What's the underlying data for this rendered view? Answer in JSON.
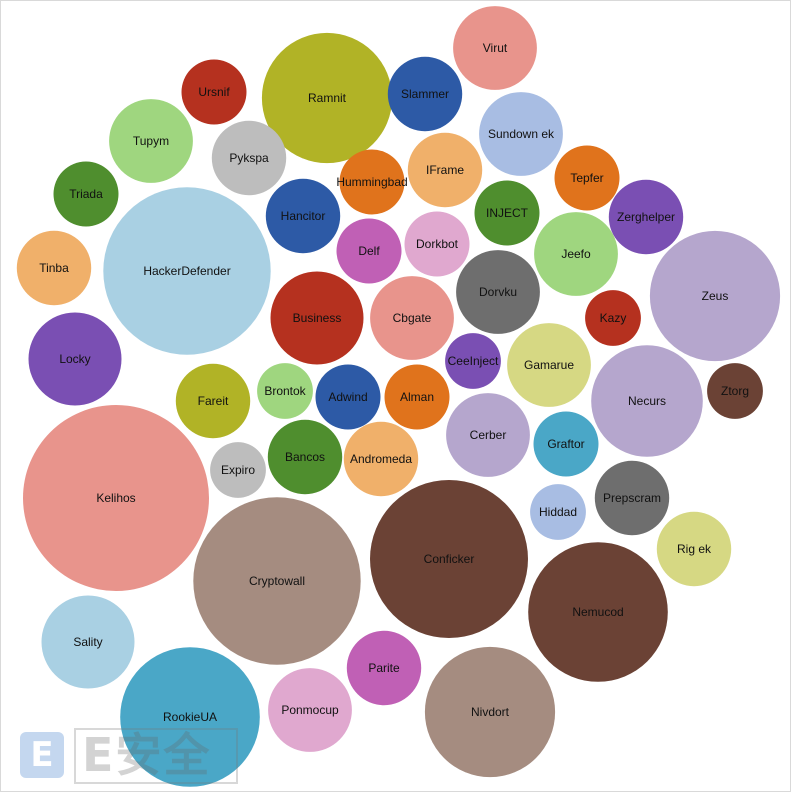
{
  "chart_data": {
    "type": "bubble",
    "title": "",
    "bubbles": [
      {
        "label": "Virut",
        "value": 81,
        "color": "#e8948c"
      },
      {
        "label": "Ursnif",
        "value": 49,
        "color": "#b5311f"
      },
      {
        "label": "Ramnit",
        "value": 196,
        "color": "#b1b326"
      },
      {
        "label": "Slammer",
        "value": 64,
        "color": "#2d5aa6"
      },
      {
        "label": "Tupym",
        "value": 81,
        "color": "#9fd67f"
      },
      {
        "label": "Sundown ek",
        "value": 81,
        "color": "#a8bde3"
      },
      {
        "label": "Pykspa",
        "value": 64,
        "color": "#bdbdbd"
      },
      {
        "label": "IFrame",
        "value": 64,
        "color": "#f0b06a"
      },
      {
        "label": "Hummingbad",
        "value": 49,
        "color": "#e0731c"
      },
      {
        "label": "Tepfer",
        "value": 49,
        "color": "#e0731c"
      },
      {
        "label": "Triada",
        "value": 49,
        "color": "#4f8e2e"
      },
      {
        "label": "INJECT",
        "value": 49,
        "color": "#4f8e2e"
      },
      {
        "label": "Zerghelper",
        "value": 64,
        "color": "#7a4fb3"
      },
      {
        "label": "Hancitor",
        "value": 64,
        "color": "#2d5aa6"
      },
      {
        "label": "HackerDefender",
        "value": 324,
        "color": "#a9d0e3"
      },
      {
        "label": "Delf",
        "value": 49,
        "color": "#c060b5"
      },
      {
        "label": "Dorkbot",
        "value": 49,
        "color": "#e0a8cf"
      },
      {
        "label": "Jeefo",
        "value": 81,
        "color": "#9fd67f"
      },
      {
        "label": "Tinba",
        "value": 64,
        "color": "#f0b06a"
      },
      {
        "label": "Zeus",
        "value": 196,
        "color": "#b5a6cd"
      },
      {
        "label": "Dorvku",
        "value": 81,
        "color": "#6e6e6e"
      },
      {
        "label": "Business",
        "value": 100,
        "color": "#b5311f"
      },
      {
        "label": "Cbgate",
        "value": 81,
        "color": "#e8948c"
      },
      {
        "label": "Kazy",
        "value": 36,
        "color": "#b5311f"
      },
      {
        "label": "Locky",
        "value": 100,
        "color": "#7a4fb3"
      },
      {
        "label": "CeeInject",
        "value": 36,
        "color": "#7a4fb3"
      },
      {
        "label": "Gamarue",
        "value": 81,
        "color": "#d6d883"
      },
      {
        "label": "Fareit",
        "value": 64,
        "color": "#b1b326"
      },
      {
        "label": "Brontok",
        "value": 36,
        "color": "#9fd67f"
      },
      {
        "label": "Adwind",
        "value": 49,
        "color": "#2d5aa6"
      },
      {
        "label": "Alman",
        "value": 49,
        "color": "#e0731c"
      },
      {
        "label": "Necurs",
        "value": 144,
        "color": "#b5a6cd"
      },
      {
        "label": "Ztorg",
        "value": 36,
        "color": "#6b4235"
      },
      {
        "label": "Cerber",
        "value": 81,
        "color": "#b5a6cd"
      },
      {
        "label": "Graftor",
        "value": 49,
        "color": "#4aa7c7"
      },
      {
        "label": "Bancos",
        "value": 64,
        "color": "#4f8e2e"
      },
      {
        "label": "Andromeda",
        "value": 64,
        "color": "#f0b06a"
      },
      {
        "label": "Expiro",
        "value": 36,
        "color": "#bdbdbd"
      },
      {
        "label": "Kelihos",
        "value": 400,
        "color": "#e8948c"
      },
      {
        "label": "Conficker",
        "value": 289,
        "color": "#6b4235"
      },
      {
        "label": "Hiddad",
        "value": 36,
        "color": "#a8bde3"
      },
      {
        "label": "Prepscram",
        "value": 64,
        "color": "#6e6e6e"
      },
      {
        "label": "Cryptowall",
        "value": 324,
        "color": "#a58c80"
      },
      {
        "label": "Rig ek",
        "value": 64,
        "color": "#d6d883"
      },
      {
        "label": "Nemucod",
        "value": 225,
        "color": "#6b4235"
      },
      {
        "label": "Sality",
        "value": 100,
        "color": "#a9d0e3"
      },
      {
        "label": "Parite",
        "value": 64,
        "color": "#c060b5"
      },
      {
        "label": "RookieUA",
        "value": 225,
        "color": "#4aa7c7"
      },
      {
        "label": "Ponmocup",
        "value": 81,
        "color": "#e0a8cf"
      },
      {
        "label": "Nivdort",
        "value": 196,
        "color": "#a58c80"
      }
    ]
  },
  "watermark": {
    "logo_glyph": "E",
    "text": "E安全"
  }
}
